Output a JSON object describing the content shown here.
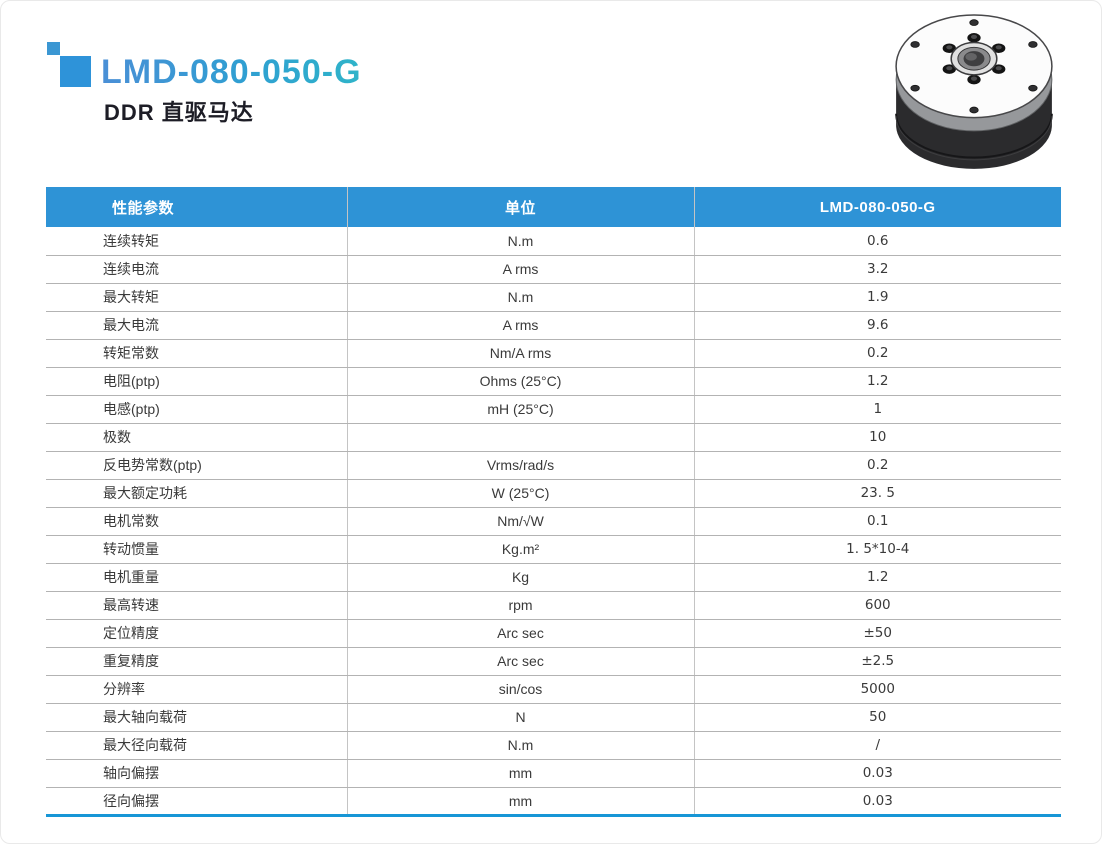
{
  "header": {
    "title": "LMD-080-050-G",
    "subtitle": "DDR 直驱马达"
  },
  "table": {
    "columns": [
      "性能参数",
      "单位",
      "LMD-080-050-G"
    ],
    "rows": [
      {
        "param": "连续转矩",
        "unit": "N.m",
        "value": "0.6"
      },
      {
        "param": "连续电流",
        "unit": "A rms",
        "value": "3.2"
      },
      {
        "param": "最大转矩",
        "unit": "N.m",
        "value": "1.9"
      },
      {
        "param": "最大电流",
        "unit": "A rms",
        "value": "9.6"
      },
      {
        "param": "转矩常数",
        "unit": "Nm/A rms",
        "value": "0.2"
      },
      {
        "param": "电阻(ptp)",
        "unit": "Ohms (25°C)",
        "value": "1.2"
      },
      {
        "param": "电感(ptp)",
        "unit": "mH (25°C)",
        "value": "1"
      },
      {
        "param": "极数",
        "unit": "",
        "value": "10"
      },
      {
        "param": "反电势常数(ptp)",
        "unit": "Vrms/rad/s",
        "value": "0.2"
      },
      {
        "param": "最大额定功耗",
        "unit": "W (25°C)",
        "value": "23. 5"
      },
      {
        "param": "电机常数",
        "unit": "Nm/√W",
        "value": "0.1"
      },
      {
        "param": "转动惯量",
        "unit": "Kg.m²",
        "value": "1. 5*10-4"
      },
      {
        "param": "电机重量",
        "unit": "Kg",
        "value": "1.2"
      },
      {
        "param": "最高转速",
        "unit": "rpm",
        "value": "600"
      },
      {
        "param": "定位精度",
        "unit": "Arc sec",
        "value": "±50"
      },
      {
        "param": "重复精度",
        "unit": "Arc sec",
        "value": "±2.5"
      },
      {
        "param": "分辨率",
        "unit": "sin/cos",
        "value": "5000"
      },
      {
        "param": "最大轴向载荷",
        "unit": "N",
        "value": "50"
      },
      {
        "param": "最大径向载荷",
        "unit": "N.m",
        "value": "/"
      },
      {
        "param": "轴向偏摆",
        "unit": "mm",
        "value": "0.03"
      },
      {
        "param": "径向偏摆",
        "unit": "mm",
        "value": "0.03"
      }
    ]
  },
  "colors": {
    "table_header_bg": "#2e93d6",
    "table_bottom_line": "#1796d6",
    "accent_square_small": "#3b97d3",
    "accent_square_large": "#2e93d9",
    "title_gradient_start": "#4a8fd6",
    "title_gradient_end": "#2fb4c9"
  },
  "icons": {
    "product_image": "ddr-direct-drive-motor-render"
  }
}
